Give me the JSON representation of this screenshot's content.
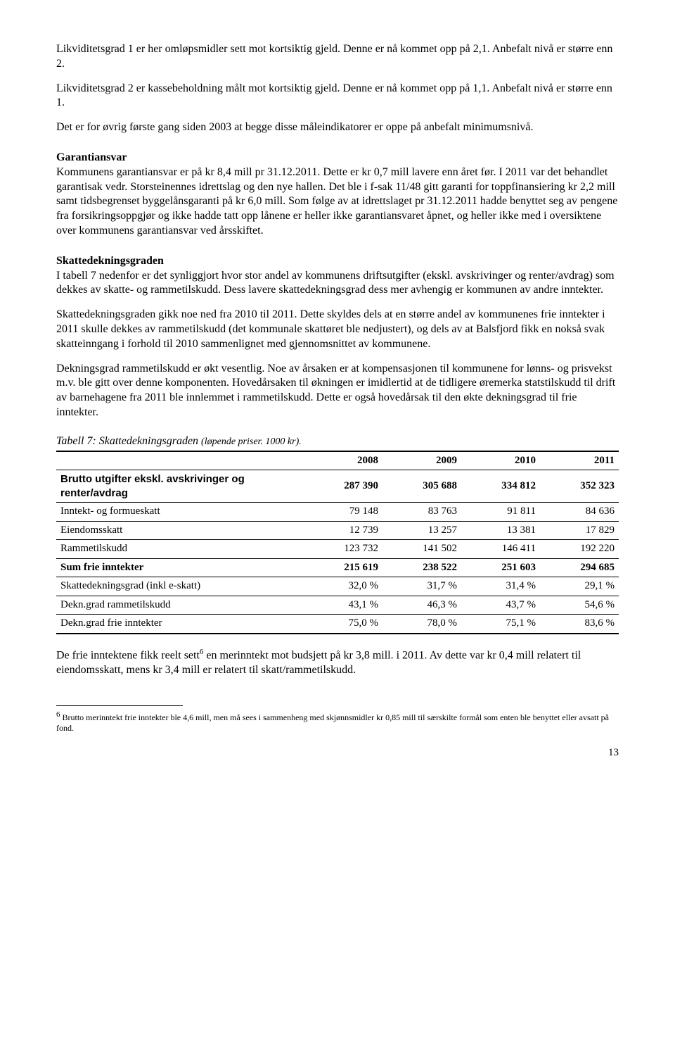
{
  "intro": {
    "p1": "Likviditetsgrad 1 er her omløpsmidler sett mot kortsiktig gjeld. Denne er nå kommet opp på 2,1. Anbefalt nivå er større enn 2.",
    "p2": "Likviditetsgrad 2 er kassebeholdning målt mot kortsiktig gjeld. Denne er nå kommet opp på 1,1. Anbefalt nivå er større enn 1.",
    "p3": "Det er for øvrig første gang siden 2003 at begge disse måleindikatorer er oppe på anbefalt minimumsnivå."
  },
  "garanti": {
    "heading": "Garantiansvar",
    "body": "Kommunens garantiansvar er på kr 8,4 mill pr 31.12.2011. Dette er kr 0,7 mill lavere enn året før. I 2011 var det behandlet garantisak vedr. Storsteinennes idrettslag og den nye hallen. Det ble i f-sak 11/48 gitt garanti for toppfinansiering kr 2,2 mill samt tidsbegrenset byggelånsgaranti på kr 6,0 mill. Som følge av at idrettslaget pr 31.12.2011 hadde benyttet seg av pengene fra forsikringsoppgjør og ikke hadde tatt opp lånene er heller ikke garantiansvaret åpnet, og heller ikke med i oversiktene over kommunens garantiansvar ved årsskiftet."
  },
  "skatte": {
    "heading": "Skattedekningsgraden",
    "p1": "I tabell 7 nedenfor er det synliggjort hvor stor andel av kommunens driftsutgifter (ekskl. avskrivinger og renter/avdrag) som dekkes av skatte- og rammetilskudd. Dess lavere skattedekningsgrad dess mer avhengig er kommunen av andre inntekter.",
    "p2": "Skattedekningsgraden gikk noe ned fra 2010 til 2011. Dette skyldes dels at en større andel av kommunenes frie inntekter i 2011 skulle dekkes av rammetilskudd (det kommunale skattøret ble nedjustert), og dels av at Balsfjord fikk en nokså svak skatteinngang i forhold til 2010 sammenlignet med gjennomsnittet av kommunene.",
    "p3": "Dekningsgrad rammetilskudd er økt vesentlig. Noe av årsaken er at kompensasjonen til kommunene for lønns- og prisvekst m.v. ble gitt over denne komponenten. Hovedårsaken til økningen er imidlertid at de tidligere øremerka statstilskudd til drift av barnehagene fra 2011 ble innlemmet i rammetilskudd. Dette er også hovedårsak til den økte dekningsgrad til frie inntekter."
  },
  "table": {
    "title_main": "Tabell 7: Skattedekningsgraden ",
    "title_paren": "(løpende priser. 1000 kr).",
    "headers": [
      "",
      "2008",
      "2009",
      "2010",
      "2011"
    ],
    "rows": [
      {
        "label": "Brutto utgifter ekskl. avskrivinger og renter/avdrag",
        "vals": [
          "287 390",
          "305 688",
          "334 812",
          "352 323"
        ],
        "bold": true,
        "arial": true
      },
      {
        "label": "Inntekt- og formueskatt",
        "vals": [
          "79 148",
          "83 763",
          "91 811",
          "84 636"
        ],
        "bold": false,
        "arial": false
      },
      {
        "label": "Eiendomsskatt",
        "vals": [
          "12 739",
          "13 257",
          "13 381",
          "17 829"
        ],
        "bold": false,
        "arial": false
      },
      {
        "label": "Rammetilskudd",
        "vals": [
          "123 732",
          "141 502",
          "146 411",
          "192 220"
        ],
        "bold": false,
        "arial": false
      },
      {
        "label": "Sum frie inntekter",
        "vals": [
          "215 619",
          "238 522",
          "251 603",
          "294 685"
        ],
        "bold": true,
        "arial": false
      },
      {
        "label": "Skattedekningsgrad (inkl e-skatt)",
        "vals": [
          "32,0 %",
          "31,7 %",
          "31,4 %",
          "29,1 %"
        ],
        "bold": false,
        "arial": false
      },
      {
        "label": "Dekn.grad rammetilskudd",
        "vals": [
          "43,1 %",
          "46,3 %",
          "43,7 %",
          "54,6 %"
        ],
        "bold": false,
        "arial": false
      },
      {
        "label": "Dekn.grad frie inntekter",
        "vals": [
          "75,0 %",
          "78,0 %",
          "75,1 %",
          "83,6 %"
        ],
        "bold": false,
        "arial": false
      }
    ]
  },
  "closing": {
    "pre": "De frie inntektene fikk reelt sett",
    "sup": "6",
    "post": " en merinntekt mot budsjett på kr 3,8 mill. i 2011. Av dette var kr 0,4 mill relatert til eiendomsskatt, mens kr 3,4 mill er relatert til skatt/rammetilskudd."
  },
  "footnote": {
    "sup": "6",
    "text": " Brutto merinntekt frie inntekter ble 4,6 mill, men må sees i sammenheng med skjønnsmidler kr 0,85 mill til særskilte formål som enten ble benyttet eller avsatt på fond."
  },
  "page_number": "13"
}
